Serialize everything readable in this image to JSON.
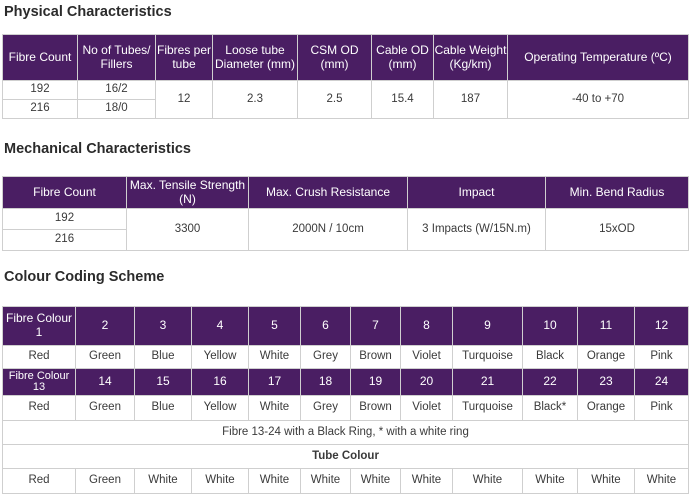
{
  "physical": {
    "title": "Physical Characteristics",
    "headers": [
      "Fibre Count",
      "No of Tubes/ Fillers",
      "Fibres per tube",
      "Loose tube Diameter (mm)",
      "CSM OD (mm)",
      "Cable OD (mm)",
      "Cable Weight (Kg/km)",
      "Operating Temperature (ºC)"
    ],
    "rows": [
      [
        "192",
        "16/2"
      ],
      [
        "216",
        "18/0"
      ]
    ],
    "shared": {
      "fibres_per_tube": "12",
      "loose_tube_diameter": "2.3",
      "csm_od": "2.5",
      "cable_od": "15.4",
      "cable_weight": "187",
      "operating_temperature": "-40 to +70"
    }
  },
  "mechanical": {
    "title": "Mechanical Characteristics",
    "headers": [
      "Fibre Count",
      "Max. Tensile Strength (N)",
      "Max. Crush Resistance",
      "Impact",
      "Min. Bend Radius"
    ],
    "fibre_counts": [
      "192",
      "216"
    ],
    "shared": {
      "tensile": "3300",
      "crush": "2000N / 10cm",
      "impact": "3 Impacts (W/15N.m)",
      "bend_radius": "15xOD"
    }
  },
  "colour": {
    "title": "Colour Coding Scheme",
    "header1": [
      "Fibre Colour 1",
      "2",
      "3",
      "4",
      "5",
      "6",
      "7",
      "8",
      "9",
      "10",
      "11",
      "12"
    ],
    "row1": [
      "Red",
      "Green",
      "Blue",
      "Yellow",
      "White",
      "Grey",
      "Brown",
      "Violet",
      "Turquoise",
      "Black",
      "Orange",
      "Pink"
    ],
    "header2": [
      "Fibre Colour 13",
      "14",
      "15",
      "16",
      "17",
      "18",
      "19",
      "20",
      "21",
      "22",
      "23",
      "24"
    ],
    "row2": [
      "Red",
      "Green",
      "Blue",
      "Yellow",
      "White",
      "Grey",
      "Brown",
      "Violet",
      "Turquoise",
      "Black*",
      "Orange",
      "Pink"
    ],
    "note": "Fibre 13-24 with a Black Ring, * with a white ring",
    "tube_colour_title": "Tube Colour",
    "tube_row": [
      "Red",
      "Green",
      "White",
      "White",
      "White",
      "White",
      "White",
      "White",
      "White",
      "White",
      "White",
      "White"
    ]
  },
  "colors": {
    "header_bg": "#4a1e63",
    "border": "#cfcfcf"
  }
}
